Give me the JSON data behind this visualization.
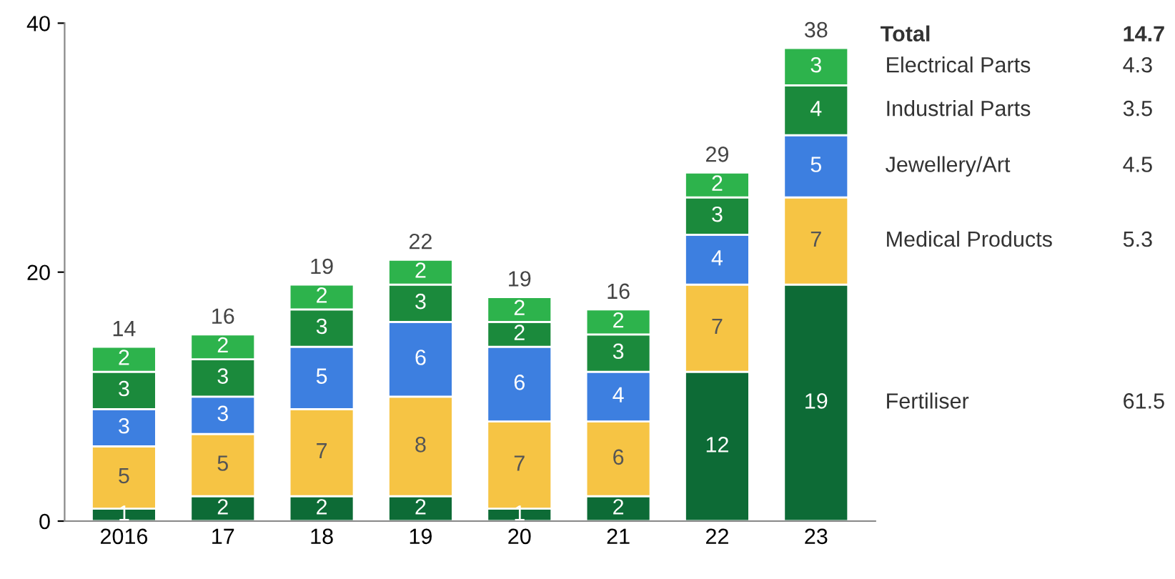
{
  "chart_data": {
    "type": "bar",
    "stacked": true,
    "categories": [
      "2016",
      "17",
      "18",
      "19",
      "20",
      "21",
      "22",
      "23"
    ],
    "series": [
      {
        "name": "Fertiliser",
        "color": "#0d6b36",
        "values": [
          1,
          2,
          2,
          2,
          1,
          2,
          12,
          19
        ]
      },
      {
        "name": "Medical Products",
        "color": "#f6c444",
        "values": [
          5,
          5,
          7,
          8,
          7,
          6,
          7,
          7
        ]
      },
      {
        "name": "Jewellery/Art",
        "color": "#3d7fe0",
        "values": [
          3,
          3,
          5,
          6,
          6,
          4,
          4,
          5
        ]
      },
      {
        "name": "Industrial Parts",
        "color": "#1b8a3c",
        "values": [
          3,
          3,
          3,
          3,
          2,
          3,
          3,
          4
        ]
      },
      {
        "name": "Electrical Parts",
        "color": "#2db34c",
        "values": [
          2,
          2,
          2,
          2,
          2,
          2,
          2,
          3
        ]
      }
    ],
    "totals": [
      "14",
      "16",
      "19",
      "22",
      "19",
      "16",
      "29",
      "38"
    ],
    "data_labels": true,
    "annotations": [
      "Total",
      "14.7",
      "61.5",
      "5.3",
      "4.5",
      "3.5",
      "4.3"
    ],
    "ylim": [
      0,
      40
    ],
    "yticks": [
      0,
      20,
      40
    ],
    "grid": false,
    "legend": false
  }
}
